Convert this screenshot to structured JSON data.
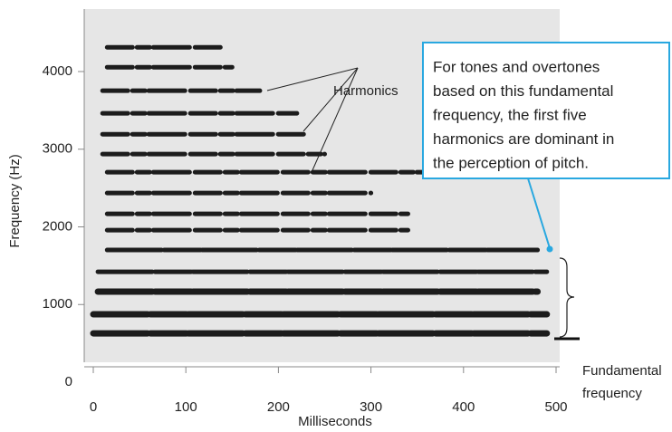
{
  "chart_data": {
    "type": "spectrogram",
    "x_label": "Milliseconds",
    "y_label": "Frequency (Hz)",
    "xlim": [
      0,
      500
    ],
    "ylim": [
      0,
      4000
    ],
    "xticks": [
      0,
      100,
      200,
      300,
      400,
      500
    ],
    "yticks": [
      0,
      1000,
      2000,
      3000,
      4000
    ],
    "band_color": "#1c1c1c",
    "bands": {
      "frequency": [
        629,
        874,
        1166,
        1422,
        1702,
        1958,
        2168,
        2436,
        2704,
        2937,
        3193,
        3462,
        3753,
        4056,
        4312
      ],
      "start_ms": [
        0,
        0,
        5,
        5,
        15,
        15,
        15,
        15,
        15,
        10,
        10,
        10,
        10,
        15,
        15
      ],
      "end_ms": [
        490,
        490,
        480,
        490,
        480,
        340,
        340,
        300,
        450,
        250,
        230,
        220,
        180,
        150,
        140
      ]
    },
    "annotations": {
      "harmonics": "Harmonics",
      "fundamental": [
        "Fundamental",
        "frequency"
      ],
      "callout": [
        "For tones and overtones",
        "based on this fundamental",
        "frequency, the first five",
        "harmonics are dominant in",
        "the perception of pitch."
      ]
    }
  }
}
